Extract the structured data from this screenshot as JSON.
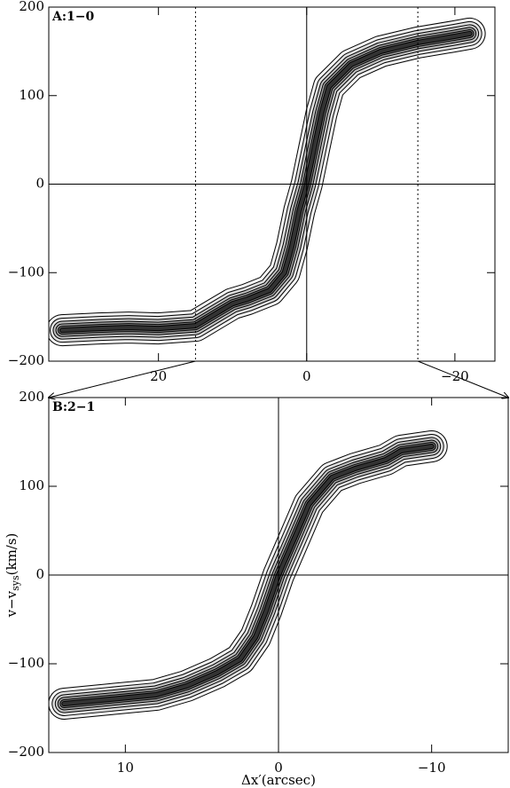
{
  "chart_data": [
    {
      "type": "contour",
      "title": "A:1−0",
      "x": [
        33,
        28,
        24,
        20,
        15,
        12,
        10,
        8,
        5,
        3,
        2,
        1,
        0,
        -1,
        -2,
        -3,
        -6,
        -10,
        -15,
        -20,
        -22
      ],
      "values": [
        -165,
        -163,
        -162,
        -163,
        -160,
        -145,
        -135,
        -130,
        -120,
        -100,
        -70,
        -30,
        0,
        40,
        80,
        110,
        135,
        150,
        160,
        167,
        170
      ],
      "xlim": [
        34.8,
        -25.4
      ],
      "ylim": [
        -200,
        200
      ],
      "xticks": [
        20,
        0,
        {
          "value": -20,
          "label": "−20"
        }
      ],
      "yticks": [
        {
          "value": -200,
          "label": "−200"
        },
        {
          "value": -100,
          "label": "−100"
        },
        0,
        100,
        200
      ]
    },
    {
      "type": "contour",
      "title": "B:2−1",
      "x": [
        14,
        11,
        8,
        6,
        4,
        2.5,
        1.5,
        0.8,
        0,
        -1,
        -2,
        -3.5,
        -5,
        -7,
        -8,
        -10
      ],
      "values": [
        -145,
        -140,
        -135,
        -125,
        -110,
        -95,
        -70,
        -40,
        0,
        40,
        80,
        110,
        120,
        130,
        140,
        145
      ],
      "xlim": [
        15,
        -15
      ],
      "ylim": [
        -200,
        200
      ],
      "xticks": [
        10,
        0,
        {
          "value": -10,
          "label": "−10"
        }
      ],
      "yticks": [
        {
          "value": -200,
          "label": "−200"
        },
        {
          "value": -100,
          "label": "−100"
        },
        0,
        100,
        200
      ],
      "xlabel": "Δx′(arcsec)",
      "ylabel": [
        "v−v",
        "sys",
        "(km/s)"
      ]
    }
  ]
}
